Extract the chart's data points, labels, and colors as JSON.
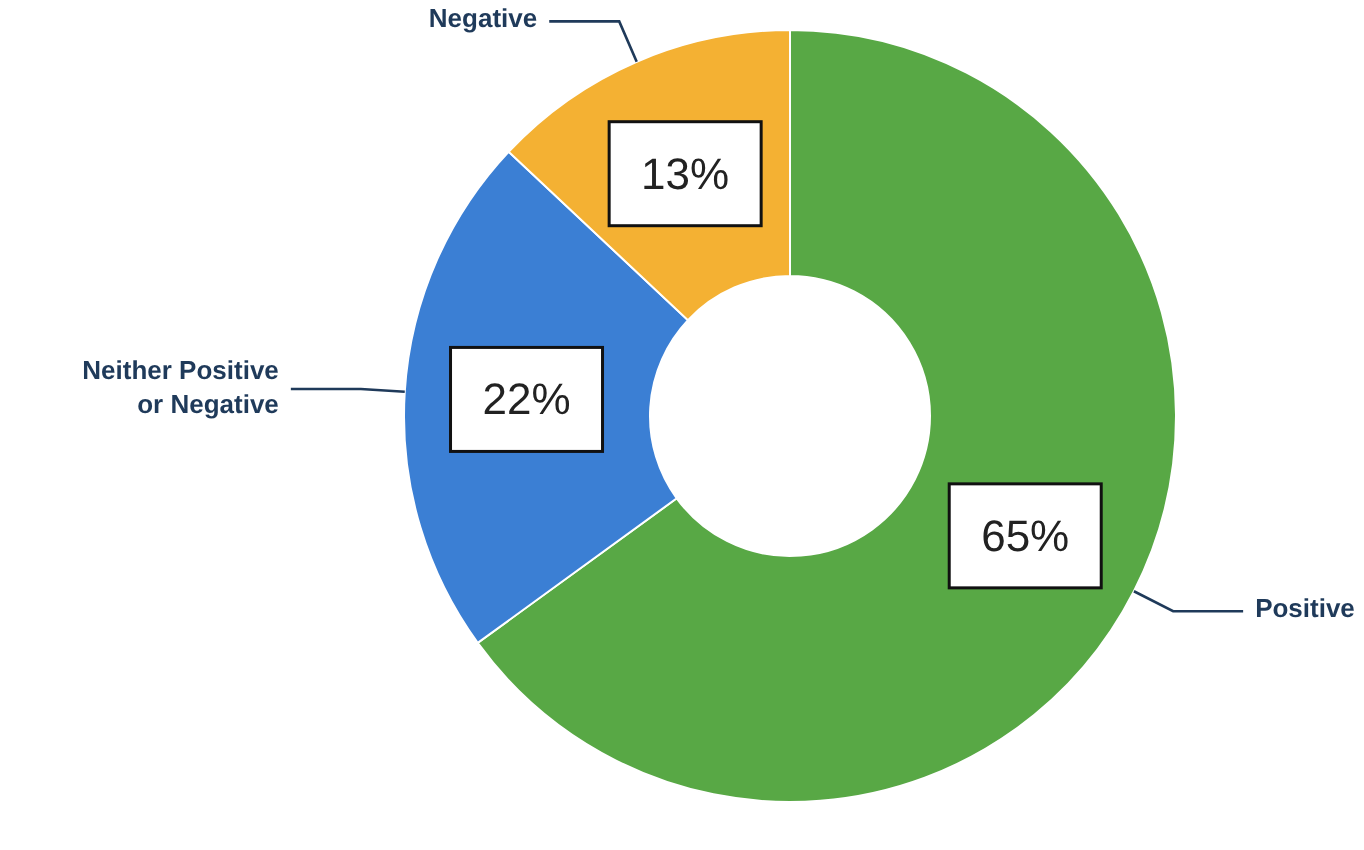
{
  "chart_data": {
    "type": "donut",
    "categories": [
      "Positive",
      "Neither Positive or Negative",
      "Negative"
    ],
    "values": [
      65,
      22,
      13
    ],
    "colors": [
      "#58a845",
      "#3b7fd4",
      "#f4b133"
    ],
    "value_labels": [
      "65%",
      "22%",
      "13%"
    ]
  }
}
